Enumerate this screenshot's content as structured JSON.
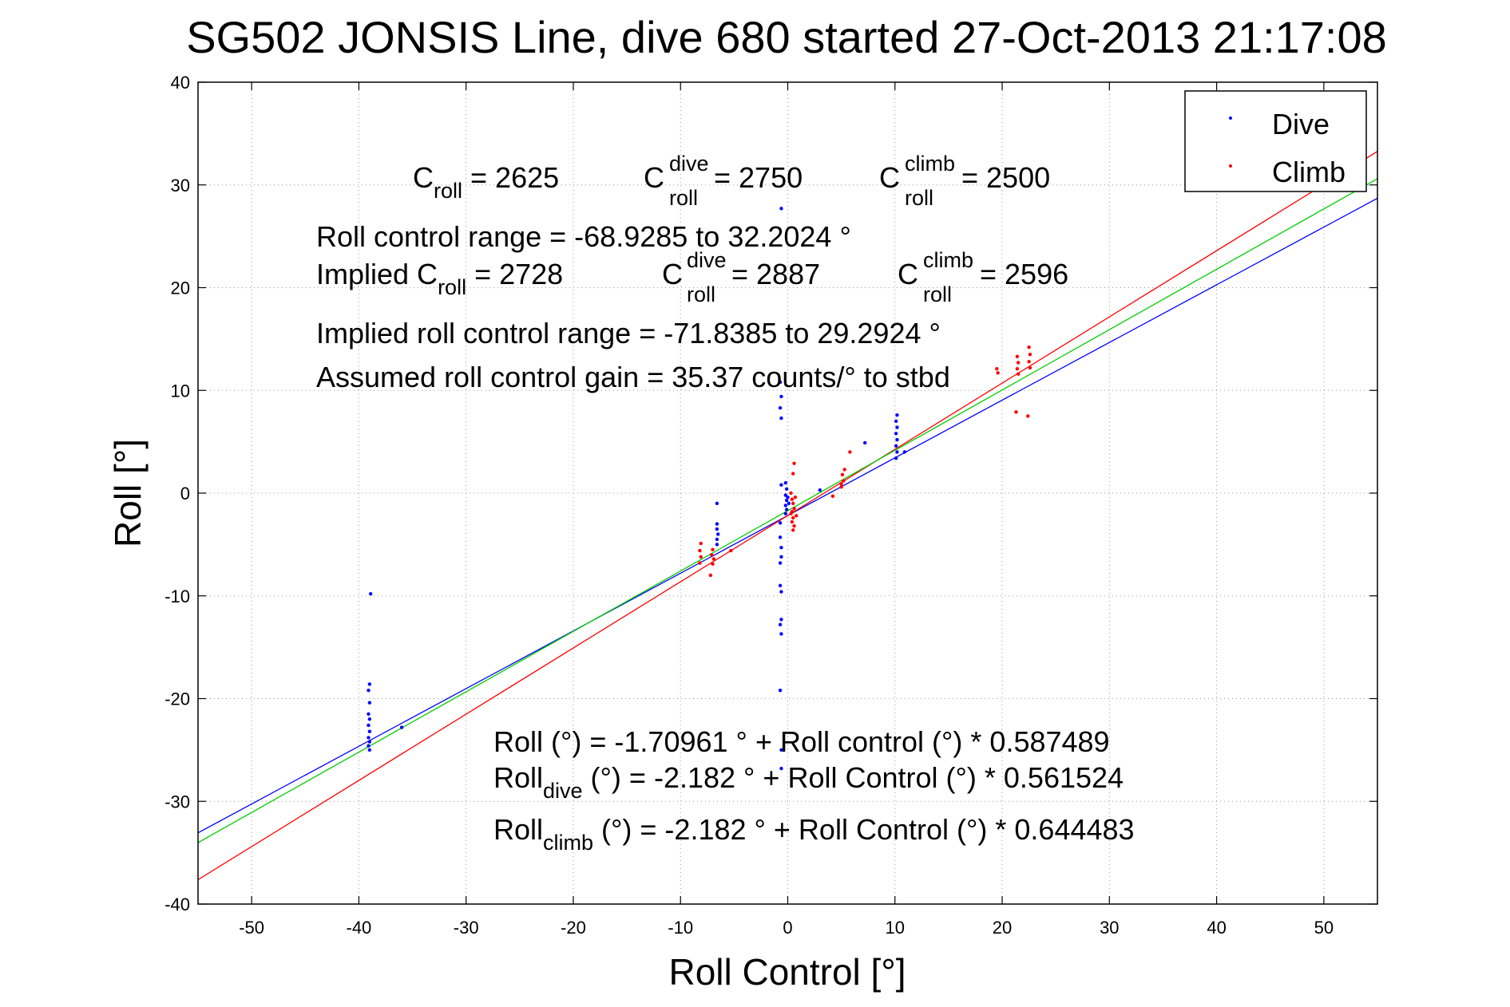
{
  "chart_data": {
    "type": "scatter",
    "title": "SG502 JONSIS Line, dive 680 started 27-Oct-2013 21:17:08",
    "xlabel": "Roll Control [°]",
    "ylabel": "Roll [°]",
    "xlim": [
      -55,
      55
    ],
    "ylim": [
      -40,
      40
    ],
    "xticks": [
      -50,
      -40,
      -30,
      -20,
      -10,
      0,
      10,
      20,
      30,
      40,
      50
    ],
    "yticks": [
      -40,
      -30,
      -20,
      -10,
      0,
      10,
      20,
      30,
      40
    ],
    "grid": true,
    "legend_position": "top-right",
    "legend": [
      {
        "label": "Dive",
        "color": "#0000ff"
      },
      {
        "label": "Climb",
        "color": "#ff0000"
      }
    ],
    "series": [
      {
        "name": "Dive",
        "color": "#0000ff",
        "points": [
          [
            -38.9,
            -9.8
          ],
          [
            -39.0,
            -18.6
          ],
          [
            -39.1,
            -19.2
          ],
          [
            -39.0,
            -20.4
          ],
          [
            -39.1,
            -21.5
          ],
          [
            -39.0,
            -22.0
          ],
          [
            -39.1,
            -22.6
          ],
          [
            -39.0,
            -23.2
          ],
          [
            -39.1,
            -23.8
          ],
          [
            -39.0,
            -24.2
          ],
          [
            -39.1,
            -24.6
          ],
          [
            -39.0,
            -25.0
          ],
          [
            -36.0,
            -22.8
          ],
          [
            -6.6,
            -1.0
          ],
          [
            -6.6,
            -3.0
          ],
          [
            -6.6,
            -3.5
          ],
          [
            -6.5,
            -4.0
          ],
          [
            -6.6,
            -4.5
          ],
          [
            -6.6,
            -5.0
          ],
          [
            -0.6,
            27.7
          ],
          [
            -0.7,
            10.8
          ],
          [
            -0.6,
            9.4
          ],
          [
            -0.7,
            8.3
          ],
          [
            -0.6,
            7.3
          ],
          [
            -0.6,
            0.8
          ],
          [
            -0.7,
            -2.9
          ],
          [
            -0.7,
            -4.3
          ],
          [
            -0.6,
            -5.3
          ],
          [
            -0.6,
            -6.2
          ],
          [
            -0.7,
            -6.8
          ],
          [
            -0.7,
            -9.0
          ],
          [
            -0.6,
            -9.6
          ],
          [
            -0.6,
            -12.3
          ],
          [
            -0.7,
            -12.8
          ],
          [
            -0.6,
            -13.7
          ],
          [
            -0.7,
            -19.2
          ],
          [
            -0.6,
            -25.0
          ],
          [
            -0.6,
            -26.8
          ],
          [
            -0.2,
            1.0
          ],
          [
            -0.1,
            0.4
          ],
          [
            -0.2,
            -0.2
          ],
          [
            -0.1,
            -0.7
          ],
          [
            -0.2,
            -1.2
          ],
          [
            -0.1,
            -1.6
          ],
          [
            -0.2,
            -2.0
          ],
          [
            0.0,
            -0.4
          ],
          [
            0.1,
            -1.0
          ],
          [
            3.0,
            0.3
          ],
          [
            7.2,
            4.9
          ],
          [
            10.2,
            7.6
          ],
          [
            10.1,
            7.0
          ],
          [
            10.2,
            6.4
          ],
          [
            10.1,
            5.8
          ],
          [
            10.2,
            5.2
          ],
          [
            10.1,
            4.6
          ],
          [
            10.2,
            4.0
          ],
          [
            10.1,
            3.4
          ],
          [
            10.9,
            4.0
          ]
        ]
      },
      {
        "name": "Climb",
        "color": "#ff0000",
        "points": [
          [
            -8.1,
            -4.9
          ],
          [
            -8.2,
            -5.6
          ],
          [
            -8.1,
            -6.2
          ],
          [
            -8.2,
            -6.8
          ],
          [
            -7.2,
            -8.0
          ],
          [
            -7.0,
            -5.5
          ],
          [
            -7.1,
            -6.0
          ],
          [
            -6.9,
            -6.4
          ],
          [
            -7.0,
            -6.9
          ],
          [
            -5.3,
            -5.6
          ],
          [
            0.3,
            0.0
          ],
          [
            0.4,
            -0.6
          ],
          [
            0.5,
            -1.0
          ],
          [
            0.6,
            -1.5
          ],
          [
            0.3,
            -2.0
          ],
          [
            0.5,
            -2.4
          ],
          [
            0.4,
            -2.8
          ],
          [
            0.6,
            -3.2
          ],
          [
            0.5,
            -3.6
          ],
          [
            0.7,
            -0.4
          ],
          [
            0.4,
            -1.8
          ],
          [
            0.6,
            2.9
          ],
          [
            0.5,
            1.9
          ],
          [
            0.8,
            -2.2
          ],
          [
            4.2,
            -0.3
          ],
          [
            5.0,
            0.6
          ],
          [
            5.2,
            1.2
          ],
          [
            5.1,
            1.8
          ],
          [
            5.3,
            2.3
          ],
          [
            5.0,
            0.9
          ],
          [
            5.8,
            4.0
          ],
          [
            19.5,
            12.1
          ],
          [
            19.6,
            11.7
          ],
          [
            21.4,
            13.3
          ],
          [
            21.5,
            12.7
          ],
          [
            21.4,
            12.1
          ],
          [
            21.5,
            11.6
          ],
          [
            21.3,
            7.9
          ],
          [
            22.5,
            14.2
          ],
          [
            22.6,
            13.5
          ],
          [
            22.5,
            12.8
          ],
          [
            22.6,
            12.2
          ],
          [
            22.4,
            7.5
          ]
        ]
      }
    ],
    "fit_lines": [
      {
        "color": "#0000ff",
        "intercept": -2.182,
        "slope": 0.561524
      },
      {
        "color": "#ff0000",
        "intercept": -2.182,
        "slope": 0.644483
      },
      {
        "color": "#00cc00",
        "intercept": -1.70961,
        "slope": 0.587489
      }
    ],
    "annotations": {
      "c_roll": {
        "prefix": "C",
        "sub": "roll",
        "value": " = 2625"
      },
      "c_roll_dive": {
        "prefix": "C",
        "sup": "dive",
        "sub": "roll",
        "value": " = 2750"
      },
      "c_roll_climb": {
        "prefix": "C",
        "sup": "climb",
        "sub": "roll",
        "value": " = 2500"
      },
      "roll_range": "Roll control range = -68.9285 to 32.2024 °",
      "implied_c_roll": {
        "prefix": "Implied C",
        "sub": "roll",
        "value": " = 2728"
      },
      "implied_c_roll_dive": {
        "prefix": "C",
        "sup": "dive",
        "sub": "roll",
        "value": " = 2887"
      },
      "implied_c_roll_climb": {
        "prefix": "C",
        "sup": "climb",
        "sub": "roll",
        "value": " = 2596"
      },
      "implied_range": "Implied roll control range = -71.8385 to 29.2924 °",
      "gain": "Assumed roll control gain = 35.37 counts/° to stbd",
      "eq_all": "Roll (°) = -1.70961 ° + Roll control (°) * 0.587489",
      "eq_dive": {
        "prefix": "Roll",
        "sub": "dive",
        "value": " (°) = -2.182 ° + Roll Control (°) * 0.561524"
      },
      "eq_climb": {
        "prefix": "Roll",
        "sub": "climb",
        "value": " (°) = -2.182 ° + Roll Control (°) * 0.644483"
      }
    }
  }
}
